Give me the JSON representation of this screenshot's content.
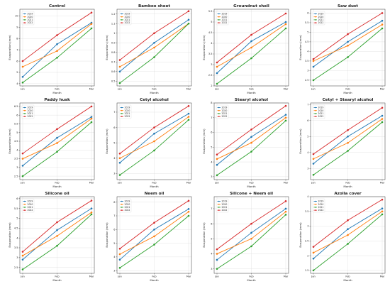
{
  "legend_labels": [
    "2019",
    "2020",
    "2021",
    "2022"
  ],
  "series_colors": [
    "#1f77b4",
    "#ff7f0e",
    "#2ca02c",
    "#d62728"
  ],
  "chart_data": [
    {
      "type": "line",
      "title": "Control",
      "xlabel": "Month",
      "ylabel": "Evaporation (mm)",
      "categories": [
        "Jan",
        "Feb",
        "Mar"
      ],
      "ylim": [
        3.8,
        10.6
      ],
      "yticks": [
        4,
        5,
        6,
        7,
        8,
        9,
        10
      ],
      "series": [
        {
          "name": "2019",
          "values": [
            4.6,
            7.5,
            9.4
          ]
        },
        {
          "name": "2020",
          "values": [
            5.5,
            6.9,
            9.3
          ]
        },
        {
          "name": "2021",
          "values": [
            4.1,
            6.3,
            8.9
          ]
        },
        {
          "name": "2022",
          "values": [
            6.0,
            8.3,
            10.3
          ]
        }
      ]
    },
    {
      "type": "line",
      "title": "Bamboo sheet",
      "xlabel": "Month",
      "ylabel": "Evaporation (mm)",
      "categories": [
        "Jan",
        "Feb",
        "Mar"
      ],
      "ylim": [
        0.45,
        1.25
      ],
      "yticks": [
        0.5,
        0.6,
        0.7,
        0.8,
        0.9,
        1.0,
        1.1,
        1.2
      ],
      "series": [
        {
          "name": "2019",
          "values": [
            0.6,
            0.9,
            1.14
          ]
        },
        {
          "name": "2020",
          "values": [
            0.65,
            0.85,
            1.1
          ]
        },
        {
          "name": "2021",
          "values": [
            0.48,
            0.75,
            1.1
          ]
        },
        {
          "name": "2022",
          "values": [
            0.72,
            1.0,
            1.23
          ]
        }
      ]
    },
    {
      "type": "line",
      "title": "Groundnut shell",
      "xlabel": "Month",
      "ylabel": "Evaporation (mm)",
      "categories": [
        "Jan",
        "Feb",
        "Mar"
      ],
      "ylim": [
        2.0,
        5.6
      ],
      "yticks": [
        2.0,
        2.5,
        3.0,
        3.5,
        4.0,
        4.5,
        5.0,
        5.5
      ],
      "series": [
        {
          "name": "2019",
          "values": [
            2.6,
            4.1,
            5.0
          ]
        },
        {
          "name": "2020",
          "values": [
            2.9,
            3.8,
            4.9
          ]
        },
        {
          "name": "2021",
          "values": [
            2.1,
            3.3,
            4.7
          ]
        },
        {
          "name": "2022",
          "values": [
            3.1,
            4.4,
            5.4
          ]
        }
      ]
    },
    {
      "type": "line",
      "title": "Saw dust",
      "xlabel": "Month",
      "ylabel": "Evaporation (mm)",
      "categories": [
        "Jan",
        "Feb",
        "Mar"
      ],
      "ylim": [
        2.2,
        6.2
      ],
      "yticks": [
        2.5,
        3.0,
        3.5,
        4.0,
        4.5,
        5.0,
        5.5,
        6.0
      ],
      "series": [
        {
          "name": "2019",
          "values": [
            3.2,
            4.5,
            5.6
          ]
        },
        {
          "name": "2020",
          "values": [
            3.5,
            4.3,
            5.4
          ]
        },
        {
          "name": "2021",
          "values": [
            2.5,
            3.7,
            5.2
          ]
        },
        {
          "name": "2022",
          "values": [
            3.6,
            4.9,
            6.0
          ]
        }
      ]
    },
    {
      "type": "line",
      "title": "Paddy husk",
      "xlabel": "Month",
      "ylabel": "Evaporation (mm)",
      "categories": [
        "Jan",
        "Feb",
        "Mar"
      ],
      "ylim": [
        2.3,
        6.7
      ],
      "yticks": [
        2.5,
        3.0,
        3.5,
        4.0,
        4.5,
        5.0,
        5.5,
        6.0,
        6.5
      ],
      "series": [
        {
          "name": "2019",
          "values": [
            3.1,
            4.7,
            5.9
          ]
        },
        {
          "name": "2020",
          "values": [
            3.5,
            4.4,
            5.8
          ]
        },
        {
          "name": "2021",
          "values": [
            2.5,
            3.9,
            5.6
          ]
        },
        {
          "name": "2022",
          "values": [
            3.8,
            5.2,
            6.5
          ]
        }
      ]
    },
    {
      "type": "line",
      "title": "Cetyl alcohol",
      "xlabel": "Month",
      "ylabel": "Evaporation (mm)",
      "categories": [
        "Jan",
        "Feb",
        "Mar"
      ],
      "ylim": [
        2.6,
        7.6
      ],
      "yticks": [
        3,
        4,
        5,
        6,
        7
      ],
      "series": [
        {
          "name": "2019",
          "values": [
            3.7,
            5.6,
            6.9
          ]
        },
        {
          "name": "2020",
          "values": [
            4.0,
            5.1,
            6.7
          ]
        },
        {
          "name": "2021",
          "values": [
            2.9,
            4.5,
            6.5
          ]
        },
        {
          "name": "2022",
          "values": [
            4.3,
            6.0,
            7.4
          ]
        }
      ]
    },
    {
      "type": "line",
      "title": "Stearyl alcohol",
      "xlabel": "Month",
      "ylabel": "Evaporation (mm)",
      "categories": [
        "Jan",
        "Feb",
        "Mar"
      ],
      "ylim": [
        2.8,
        8.0
      ],
      "yticks": [
        3,
        4,
        5,
        6,
        7,
        8
      ],
      "series": [
        {
          "name": "2019",
          "values": [
            3.8,
            5.7,
            7.2
          ]
        },
        {
          "name": "2020",
          "values": [
            4.2,
            5.3,
            7.0
          ]
        },
        {
          "name": "2021",
          "values": [
            3.1,
            4.7,
            6.8
          ]
        },
        {
          "name": "2022",
          "values": [
            4.5,
            6.2,
            7.8
          ]
        }
      ]
    },
    {
      "type": "line",
      "title": "Cetyl + Stearyl alcohol",
      "xlabel": "Month",
      "ylabel": "Evaporation (mm)",
      "categories": [
        "Jan",
        "Feb",
        "Mar"
      ],
      "ylim": [
        2.3,
        7.1
      ],
      "yticks": [
        3,
        4,
        5,
        6,
        7
      ],
      "series": [
        {
          "name": "2019",
          "values": [
            3.3,
            5.0,
            6.3
          ]
        },
        {
          "name": "2020",
          "values": [
            3.6,
            4.6,
            6.1
          ]
        },
        {
          "name": "2021",
          "values": [
            2.6,
            4.1,
            5.9
          ]
        },
        {
          "name": "2022",
          "values": [
            3.9,
            5.4,
            6.8
          ]
        }
      ]
    },
    {
      "type": "line",
      "title": "Silicone oil",
      "xlabel": "Month",
      "ylabel": "Evaporation (mm)",
      "categories": [
        "Jan",
        "Feb",
        "Mar"
      ],
      "ylim": [
        2.2,
        6.1
      ],
      "yticks": [
        2.5,
        3.0,
        3.5,
        4.0,
        4.5,
        5.0,
        5.5,
        6.0
      ],
      "series": [
        {
          "name": "2019",
          "values": [
            2.9,
            4.4,
            5.5
          ]
        },
        {
          "name": "2020",
          "values": [
            3.1,
            4.1,
            5.3
          ]
        },
        {
          "name": "2021",
          "values": [
            2.4,
            3.6,
            5.2
          ]
        },
        {
          "name": "2022",
          "values": [
            3.3,
            4.8,
            5.9
          ]
        }
      ]
    },
    {
      "type": "line",
      "title": "Neem oil",
      "xlabel": "Month",
      "ylabel": "Evaporation (mm)",
      "categories": [
        "Jan",
        "Feb",
        "Mar"
      ],
      "ylim": [
        2.8,
        8.4
      ],
      "yticks": [
        3,
        4,
        5,
        6,
        7,
        8
      ],
      "series": [
        {
          "name": "2019",
          "values": [
            3.8,
            6.0,
            7.5
          ]
        },
        {
          "name": "2020",
          "values": [
            4.2,
            5.5,
            7.3
          ]
        },
        {
          "name": "2021",
          "values": [
            3.2,
            4.9,
            7.0
          ]
        },
        {
          "name": "2022",
          "values": [
            4.6,
            6.5,
            8.1
          ]
        }
      ]
    },
    {
      "type": "line",
      "title": "Silicone + Neem oil",
      "xlabel": "Month",
      "ylabel": "Evaporation (mm)",
      "categories": [
        "Jan",
        "Feb",
        "Mar"
      ],
      "ylim": [
        2.7,
        7.8
      ],
      "yticks": [
        3,
        4,
        5,
        6,
        7
      ],
      "series": [
        {
          "name": "2019",
          "values": [
            3.6,
            5.4,
            7.0
          ]
        },
        {
          "name": "2020",
          "values": [
            4.0,
            5.0,
            6.8
          ]
        },
        {
          "name": "2021",
          "values": [
            3.0,
            4.5,
            6.6
          ]
        },
        {
          "name": "2022",
          "values": [
            4.3,
            6.0,
            7.5
          ]
        }
      ]
    },
    {
      "type": "line",
      "title": "Azolla cover",
      "xlabel": "Month",
      "ylabel": "Evaporation (mm)",
      "categories": [
        "Jan",
        "Feb",
        "Mar"
      ],
      "ylim": [
        1.4,
        4.0
      ],
      "yticks": [
        1.5,
        2.0,
        2.5,
        3.0,
        3.5,
        4.0
      ],
      "series": [
        {
          "name": "2019",
          "values": [
            1.9,
            2.9,
            3.6
          ]
        },
        {
          "name": "2020",
          "values": [
            2.1,
            2.7,
            3.5
          ]
        },
        {
          "name": "2021",
          "values": [
            1.5,
            2.4,
            3.4
          ]
        },
        {
          "name": "2022",
          "values": [
            2.3,
            3.2,
            3.9
          ]
        }
      ]
    }
  ]
}
